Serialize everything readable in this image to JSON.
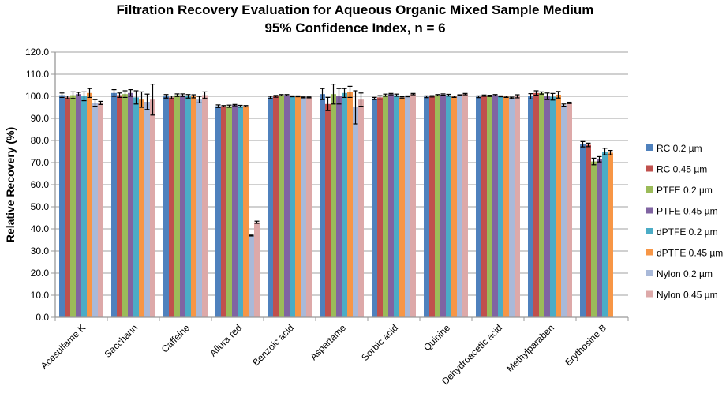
{
  "chart_data": {
    "type": "bar",
    "title": "Filtration Recovery Evaluation for Aqueous Organic Mixed Sample Medium",
    "subtitle": "95% Confidence Index, n = 6",
    "xlabel": "",
    "ylabel": "Relative Recovery (%)",
    "ylim": [
      0,
      120
    ],
    "yticks": [
      "0.0",
      "10.0",
      "20.0",
      "30.0",
      "40.0",
      "50.0",
      "60.0",
      "70.0",
      "80.0",
      "90.0",
      "100.0",
      "110.0",
      "120.0"
    ],
    "grid": true,
    "legend_position": "right",
    "categories": [
      "Acesulfame K",
      "Saccharin",
      "Caffeine",
      "Allura red",
      "Benzoic acid",
      "Aspartame",
      "Sorbic acid",
      "Quinine",
      "Dehydroacetic acid",
      "Methylparaben",
      "Erythosine B"
    ],
    "series": [
      {
        "name": "RC 0.2 µm",
        "color": "#4F81BD",
        "values": [
          100.5,
          101.5,
          100.0,
          95.5,
          99.5,
          101.0,
          99.0,
          99.8,
          99.8,
          100.0,
          78.3
        ],
        "errors": [
          1.0,
          1.5,
          0.8,
          0.6,
          0.5,
          2.5,
          0.5,
          0.4,
          0.4,
          1.2,
          1.2
        ]
      },
      {
        "name": "RC 0.45 µm",
        "color": "#C0504D",
        "values": [
          99.5,
          100.5,
          99.5,
          95.5,
          100.0,
          96.5,
          99.5,
          100.0,
          100.3,
          101.5,
          78.0
        ],
        "errors": [
          0.6,
          1.0,
          0.6,
          0.3,
          0.4,
          3.0,
          0.8,
          0.3,
          0.3,
          1.0,
          0.8
        ]
      },
      {
        "name": "PTFE 0.2 µm",
        "color": "#9BBB59",
        "values": [
          100.5,
          101.0,
          100.5,
          95.5,
          100.5,
          101.0,
          100.5,
          100.5,
          100.2,
          101.5,
          70.5
        ],
        "errors": [
          1.5,
          1.5,
          0.6,
          0.5,
          0.3,
          4.5,
          0.5,
          0.3,
          0.3,
          0.5,
          1.5
        ]
      },
      {
        "name": "PTFE 0.45 µm",
        "color": "#8064A2",
        "values": [
          101.0,
          101.5,
          100.5,
          96.0,
          100.5,
          100.0,
          101.0,
          100.8,
          100.5,
          100.0,
          71.5
        ],
        "errors": [
          0.8,
          1.5,
          0.6,
          0.3,
          0.3,
          3.5,
          0.3,
          0.3,
          0.3,
          1.5,
          1.2
        ]
      },
      {
        "name": "dPTFE 0.2 µm",
        "color": "#4BACC6",
        "values": [
          100.0,
          99.5,
          100.0,
          95.5,
          100.0,
          101.5,
          100.5,
          100.5,
          100.0,
          99.8,
          75.0
        ],
        "errors": [
          2.0,
          3.0,
          0.8,
          0.4,
          0.2,
          2.0,
          0.5,
          0.4,
          0.2,
          1.5,
          1.5
        ]
      },
      {
        "name": "dPTFE 0.45 µm",
        "color": "#F79646",
        "values": [
          101.5,
          98.5,
          100.0,
          95.5,
          100.0,
          102.0,
          99.5,
          99.8,
          99.8,
          100.7,
          74.5
        ],
        "errors": [
          2.0,
          3.5,
          0.7,
          0.3,
          0.2,
          2.5,
          0.3,
          0.3,
          0.3,
          1.5,
          1.0
        ]
      },
      {
        "name": "Nylon 0.2 µm",
        "color": "#A9B9D9",
        "values": [
          97.0,
          97.5,
          98.5,
          37.0,
          99.5,
          95.0,
          100.0,
          100.5,
          99.3,
          96.0,
          null
        ],
        "errors": [
          1.5,
          3.5,
          1.5,
          0.2,
          0.2,
          7.5,
          0.2,
          0.2,
          0.3,
          0.5,
          null
        ]
      },
      {
        "name": "Nylon 0.45 µm",
        "color": "#DDA9A9",
        "values": [
          97.0,
          98.5,
          100.5,
          43.0,
          99.5,
          98.5,
          101.0,
          101.0,
          100.0,
          97.0,
          null
        ],
        "errors": [
          0.7,
          7.0,
          1.5,
          0.5,
          0.2,
          3.0,
          0.3,
          0.3,
          0.7,
          0.3,
          null
        ]
      }
    ]
  }
}
